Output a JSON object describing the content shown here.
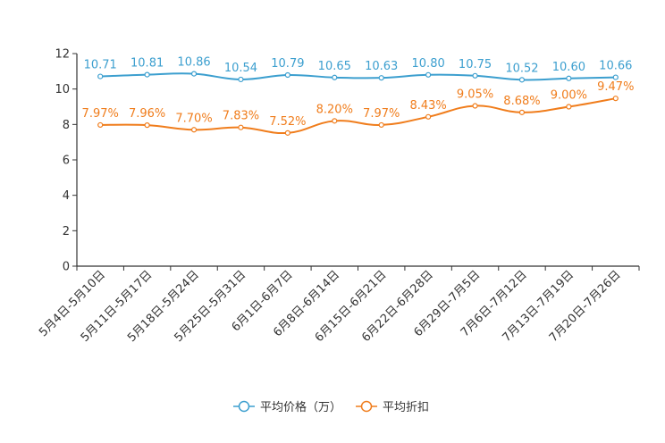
{
  "chart_data": {
    "type": "line",
    "title": "",
    "xlabel": "",
    "ylabel": "",
    "ylim": [
      0,
      12
    ],
    "yticks": [
      0,
      2,
      4,
      6,
      8,
      10,
      12
    ],
    "grid": false,
    "legend_position": "bottom-center",
    "categories": [
      "5月4日-5月10日",
      "5月11日-5月17日",
      "5月18日-5月24日",
      "5月25日-5月31日",
      "6月1日-6月7日",
      "6月8日-6月14日",
      "6月15日-6月21日",
      "6月22日-6月28日",
      "6月29日-7月5日",
      "7月6日-7月12日",
      "7月13日-7月19日",
      "7月20日-7月26日"
    ],
    "series": [
      {
        "name": "平均价格（万）",
        "color": "#3c9fcf",
        "values": [
          10.71,
          10.81,
          10.86,
          10.54,
          10.79,
          10.65,
          10.63,
          10.8,
          10.75,
          10.52,
          10.6,
          10.66
        ],
        "labels": [
          "10.71",
          "10.81",
          "10.86",
          "10.54",
          "10.79",
          "10.65",
          "10.63",
          "10.80",
          "10.75",
          "10.52",
          "10.60",
          "10.66"
        ]
      },
      {
        "name": "平均折扣",
        "color": "#f07d1c",
        "values": [
          7.97,
          7.96,
          7.7,
          7.83,
          7.52,
          8.2,
          7.97,
          8.43,
          9.05,
          8.68,
          9.0,
          9.47
        ],
        "labels": [
          "7.97%",
          "7.96%",
          "7.70%",
          "7.83%",
          "7.52%",
          "8.20%",
          "7.97%",
          "8.43%",
          "9.05%",
          "8.68%",
          "9.00%",
          "9.47%"
        ]
      }
    ]
  }
}
